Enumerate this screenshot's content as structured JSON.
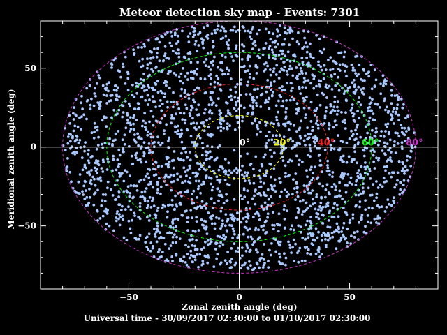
{
  "chart_data": {
    "type": "scatter",
    "title": "Meteor detection sky map - Events: 7301",
    "xlabel": "Zonal zenith angle (deg)",
    "ylabel": "Meridional zenith angle (deg)",
    "subtitle": "Universal time - 30/09/2017 02:30:00 to 01/10/2017 02:30:00",
    "xlim": [
      -90,
      90
    ],
    "ylim": [
      -90,
      80
    ],
    "x_ticks": [
      -50,
      0,
      50
    ],
    "y_ticks": [
      -50,
      0,
      50
    ],
    "event_count": 7301,
    "point_color": "#a8c8ff",
    "zenith_rings": [
      {
        "angle": 20,
        "label": "20°",
        "color": "#ffff00"
      },
      {
        "angle": 40,
        "label": "40°",
        "color": "#ff2020"
      },
      {
        "angle": 60,
        "label": "60°",
        "color": "#00ff00"
      },
      {
        "angle": 80,
        "label": "80°",
        "color": "#cc33cc"
      }
    ],
    "center_label": "0°",
    "grid": false,
    "legend": "none"
  }
}
